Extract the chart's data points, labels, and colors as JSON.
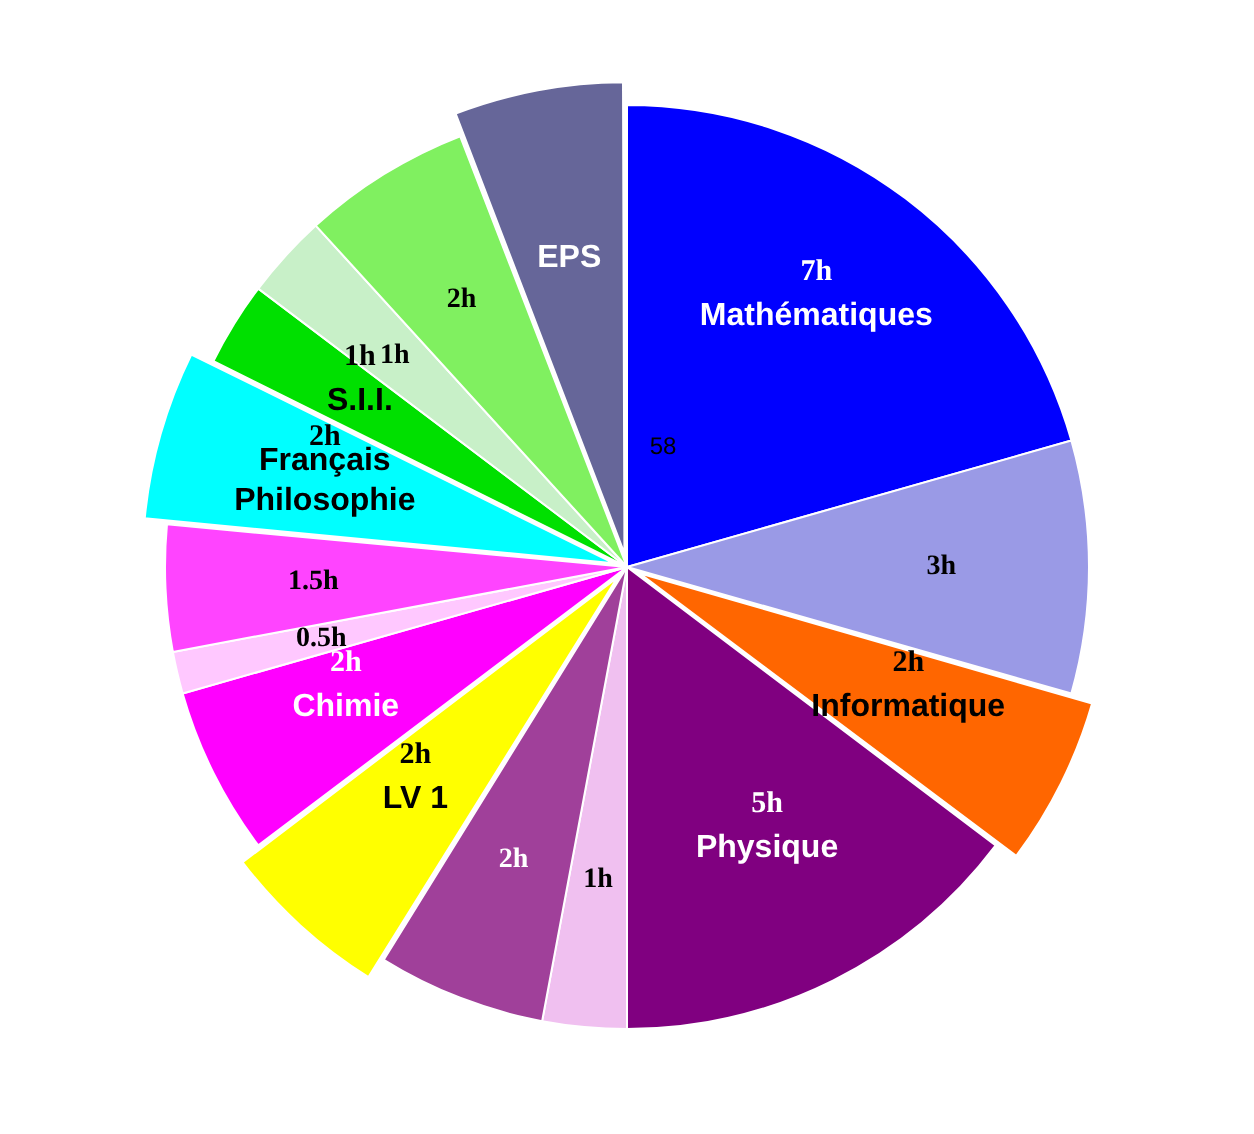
{
  "chart_data": {
    "type": "pie",
    "categories": [
      "Mathématiques",
      null,
      "Informatique",
      "Physique",
      null,
      null,
      "LV 1",
      "Chimie",
      null,
      null,
      "Français Philosophie",
      "S.I.I.",
      null,
      null,
      "EPS"
    ],
    "values": [
      7,
      3,
      2,
      5,
      1,
      2,
      2,
      2,
      0.5,
      1.5,
      2,
      1,
      1,
      2,
      2
    ],
    "value_labels": [
      "7h",
      "3h",
      "2h",
      "5h",
      "1h",
      "2h",
      "2h",
      "2h",
      "0.5h",
      "1.5h",
      "2h",
      "1h",
      "1h",
      "2h",
      null
    ],
    "colors": [
      "#0000ff",
      "#9a9ae6",
      "#ff6600",
      "#800080",
      "#f0c0f0",
      "#a0409a",
      "#ffff00",
      "#ff00ff",
      "#ffc8ff",
      "#ff44ff",
      "#00ffff",
      "#00e000",
      "#c8f0c8",
      "#80f060",
      "#666699"
    ],
    "annotations": [
      "58"
    ],
    "legend": false
  }
}
